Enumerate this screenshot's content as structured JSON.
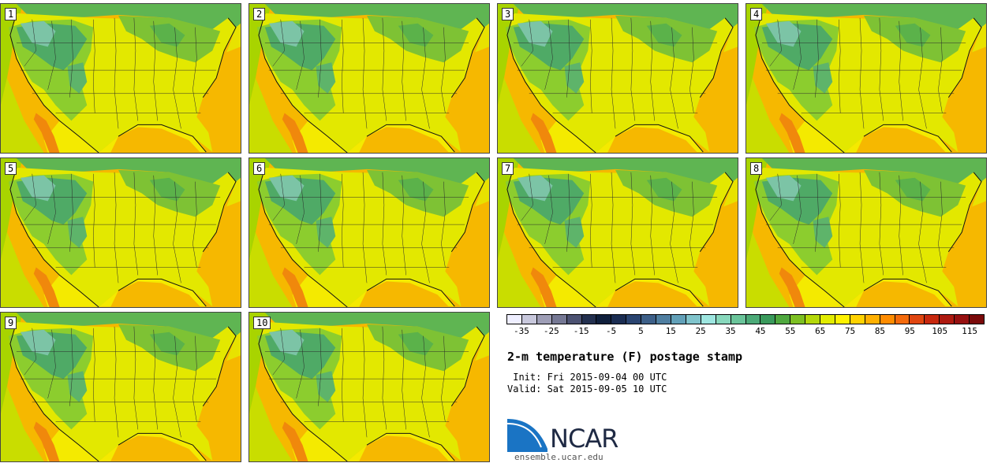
{
  "stamps": [
    "1",
    "2",
    "3",
    "4",
    "5",
    "6",
    "7",
    "8",
    "9",
    "10"
  ],
  "colorbar": {
    "colors": [
      "#eeeeff",
      "#c8c8dc",
      "#9e9eb6",
      "#757894",
      "#4c5272",
      "#23304f",
      "#0f1f3c",
      "#1b2d52",
      "#2a4470",
      "#3d5f88",
      "#4f7ea0",
      "#62a0b8",
      "#80c4cc",
      "#9ee6e0",
      "#88d8bc",
      "#6ac49a",
      "#4caa78",
      "#3a9a5c",
      "#4fa83f",
      "#7dc023",
      "#b4d80a",
      "#e2ec00",
      "#fff200",
      "#ffd200",
      "#ffb000",
      "#ff8c00",
      "#f46a0c",
      "#e04610",
      "#c8280e",
      "#ae1a10",
      "#961010",
      "#7a0a0a"
    ],
    "ticks": [
      "-35",
      "-25",
      "-15",
      "-5",
      "5",
      "15",
      "25",
      "35",
      "45",
      "55",
      "65",
      "75",
      "85",
      "95",
      "105",
      "115"
    ],
    "tick_min": -35,
    "tick_max": 115,
    "range_min": -40,
    "range_max": 120
  },
  "title": "2-m temperature (F) postage stamp",
  "init": " Init: Fri 2015-09-04 00 UTC",
  "valid": "Valid: Sat 2015-09-05 10 UTC",
  "logo_text": "NCAR",
  "footer": "ensemble.ucar.edu"
}
